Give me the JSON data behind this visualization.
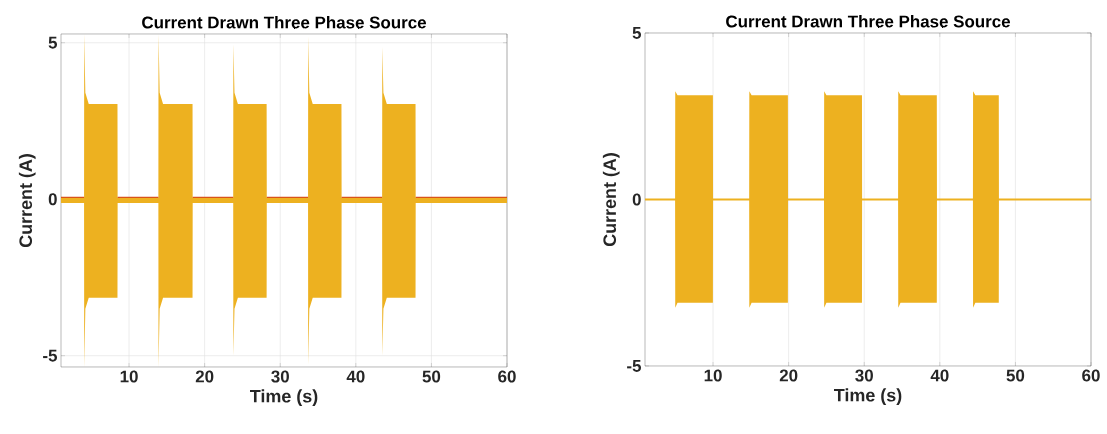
{
  "chart_data": [
    {
      "type": "line",
      "title": "Current Drawn Three Phase Source",
      "xlabel": "Time (s)",
      "ylabel": "Current (A)",
      "xlim": [
        1,
        60
      ],
      "ylim": [
        -5.36,
        5.28
      ],
      "xticks": [
        10,
        20,
        30,
        40,
        50,
        60
      ],
      "yticks": [
        -5,
        0,
        5
      ],
      "grid": true,
      "series": [
        {
          "color": "#edb120",
          "x": [
            1,
            4.05,
            4.07,
            4.22,
            4.67,
            8.47,
            8.49,
            13.88,
            13.9,
            14.05,
            14.5,
            18.4,
            18.42,
            23.78,
            23.8,
            23.95,
            24.4,
            28.2,
            28.22,
            33.68,
            33.7,
            33.85,
            34.3,
            38.1,
            38.12,
            43.48,
            43.5,
            43.65,
            44.1,
            47.9,
            47.92,
            60
          ],
          "values": [
            null,
            null,
            null,
            null,
            null,
            null,
            null,
            null,
            null,
            null,
            null,
            null,
            null,
            null,
            null,
            null,
            null,
            null,
            null,
            null,
            null,
            null,
            null,
            null,
            null,
            null,
            null,
            null,
            null,
            null,
            null,
            null
          ],
          "upper": [
            0.05,
            0.05,
            5.28,
            3.4,
            3.04,
            3.04,
            0.05,
            0.05,
            5.28,
            3.4,
            3.04,
            3.04,
            0.05,
            0.05,
            4.95,
            3.4,
            3.04,
            3.04,
            0.05,
            0.05,
            5.2,
            3.4,
            3.04,
            3.04,
            0.05,
            0.05,
            4.86,
            3.4,
            3.04,
            3.04,
            0.05,
            0.05
          ],
          "lower": [
            -0.12,
            -0.12,
            -5.36,
            -3.5,
            -3.15,
            -3.15,
            -0.12,
            -0.12,
            -5.36,
            -3.5,
            -3.15,
            -3.15,
            -0.12,
            -0.12,
            -5.0,
            -3.5,
            -3.15,
            -3.15,
            -0.12,
            -0.12,
            -5.27,
            -3.5,
            -3.15,
            -3.15,
            -0.12,
            -0.12,
            -5.0,
            -3.5,
            -3.15,
            -3.15,
            -0.12,
            -0.12
          ]
        },
        {
          "color": "#d95319",
          "x": [
            1,
            4.05,
            6,
            8.49,
            13.88,
            16,
            18.42,
            23.78,
            26,
            28.22,
            33.68,
            36,
            38.12,
            43.48,
            46,
            47.92,
            60
          ],
          "values": [
            0.06,
            0.06,
            null,
            0.06,
            0.06,
            null,
            0.06,
            0.06,
            null,
            0.06,
            0.06,
            null,
            0.06,
            0.06,
            null,
            0.06,
            0.06
          ]
        }
      ]
    },
    {
      "type": "line",
      "title": "Current Drawn Three Phase Source",
      "xlabel": "Time (s)",
      "ylabel": "Current (A)",
      "xlim": [
        1,
        60
      ],
      "ylim": [
        -5,
        5
      ],
      "xticks": [
        10,
        20,
        30,
        40,
        50,
        60
      ],
      "yticks": [
        -5,
        0,
        5
      ],
      "grid": "x",
      "series": [
        {
          "color": "#edb120",
          "x": [
            1,
            4.98,
            5.0,
            5.3,
            9.98,
            10.0,
            14.78,
            14.8,
            15.1,
            19.9,
            19.92,
            24.68,
            24.7,
            25.0,
            29.7,
            29.72,
            34.48,
            34.5,
            34.8,
            39.6,
            39.62,
            44.38,
            44.4,
            44.7,
            47.8,
            47.82,
            60
          ],
          "values": [
            null,
            null,
            null,
            null,
            null,
            null,
            null,
            null,
            null,
            null,
            null,
            null,
            null,
            null,
            null,
            null,
            null,
            null,
            null,
            null,
            null,
            null,
            null,
            null,
            null,
            null,
            null
          ],
          "upper": [
            0.03,
            0.03,
            3.25,
            3.13,
            3.13,
            0.03,
            0.03,
            3.25,
            3.13,
            3.13,
            0.03,
            0.03,
            3.25,
            3.13,
            3.13,
            0.03,
            0.03,
            3.25,
            3.13,
            3.13,
            0.03,
            0.03,
            3.25,
            3.13,
            3.13,
            0.03,
            0.03
          ],
          "lower": [
            -0.03,
            -0.03,
            -3.25,
            -3.1,
            -3.1,
            -0.03,
            -0.03,
            -3.25,
            -3.1,
            -3.1,
            -0.03,
            -0.03,
            -3.25,
            -3.1,
            -3.1,
            -0.03,
            -0.03,
            -3.25,
            -3.1,
            -3.1,
            -0.03,
            -0.03,
            -3.25,
            -3.1,
            -3.1,
            -0.03,
            -0.03
          ]
        }
      ]
    }
  ]
}
